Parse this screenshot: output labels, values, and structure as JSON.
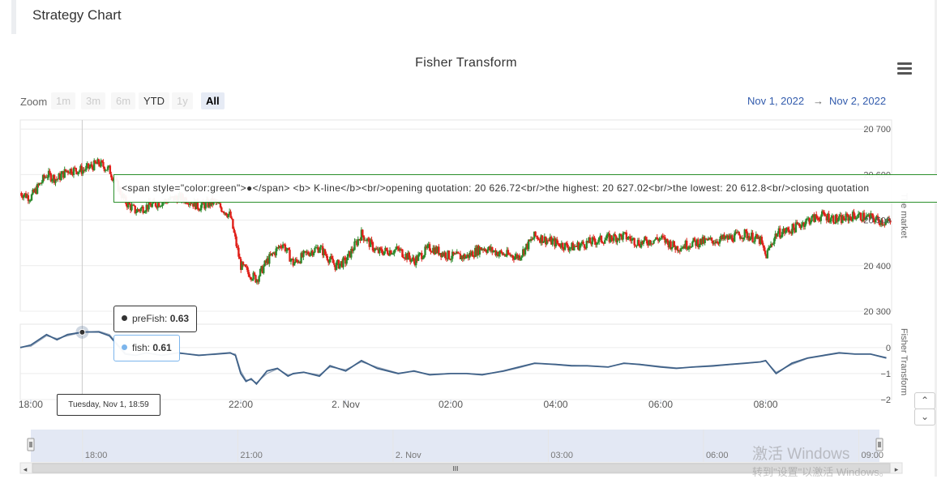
{
  "panel": {
    "title": "Strategy Chart"
  },
  "chart_data": {
    "type": "line",
    "title": "Fisher Transform",
    "zoom": {
      "label": "Zoom",
      "buttons": [
        {
          "label": "1m",
          "state": "disabled"
        },
        {
          "label": "3m",
          "state": "disabled"
        },
        {
          "label": "6m",
          "state": "disabled"
        },
        {
          "label": "YTD",
          "state": "enabled"
        },
        {
          "label": "1y",
          "state": "disabled"
        },
        {
          "label": "All",
          "state": "selected"
        }
      ]
    },
    "range": {
      "from": "Nov 1, 2022",
      "arrow": "→",
      "to": "Nov 2, 2022"
    },
    "upper_axis": {
      "label": "The market",
      "ticks": [
        "20 700",
        "20 600",
        "20 500",
        "20 400",
        "20 300"
      ],
      "tick_values": [
        20700,
        20600,
        20500,
        20400,
        20300
      ],
      "ylim": [
        20300,
        20720
      ]
    },
    "lower_axis": {
      "label": "Fisher Transform",
      "ticks": [
        "0",
        "−1",
        "−2"
      ],
      "tick_values": [
        0,
        -1,
        -2
      ],
      "ylim": [
        -2,
        0.9
      ]
    },
    "x_axis": {
      "xlim": [
        17.8,
        34.4
      ],
      "ticks": [
        {
          "label": "18:00",
          "hour": 18
        },
        {
          "label": "22:00",
          "hour": 22
        },
        {
          "label": "2. Nov",
          "hour": 24
        },
        {
          "label": "02:00",
          "hour": 26
        },
        {
          "label": "04:00",
          "hour": 28
        },
        {
          "label": "06:00",
          "hour": 30
        },
        {
          "label": "08:00",
          "hour": 32
        }
      ]
    },
    "navigator": {
      "xlim": [
        17.0,
        33.4
      ],
      "ticks": [
        {
          "label": "18:00",
          "hour": 18
        },
        {
          "label": "21:00",
          "hour": 21
        },
        {
          "label": "2. Nov",
          "hour": 24
        },
        {
          "label": "03:00",
          "hour": 27
        },
        {
          "label": "06:00",
          "hour": 30
        },
        {
          "label": "09:00",
          "hour": 33
        }
      ]
    },
    "kline_trend": {
      "name": "K-line",
      "hours": [
        17.8,
        18.0,
        18.3,
        18.5,
        18.7,
        19.0,
        19.3,
        19.5,
        19.8,
        20.0,
        20.2,
        20.5,
        20.8,
        21.0,
        21.2,
        21.5,
        21.8,
        22.0,
        22.3,
        22.5,
        22.8,
        23.0,
        23.3,
        23.5,
        23.8,
        24.0,
        24.3,
        24.6,
        25.0,
        25.3,
        25.6,
        26.0,
        26.3,
        26.6,
        27.0,
        27.3,
        27.6,
        28.0,
        28.3,
        28.6,
        29.0,
        29.3,
        29.6,
        30.0,
        30.3,
        30.6,
        31.0,
        31.3,
        31.6,
        31.9,
        32.0,
        32.2,
        32.5,
        32.8,
        33.1,
        33.4,
        33.7,
        34.0,
        34.3
      ],
      "values": [
        20560,
        20550,
        20600,
        20590,
        20610,
        20610,
        20625,
        20610,
        20540,
        20520,
        20530,
        20540,
        20550,
        20545,
        20530,
        20540,
        20510,
        20400,
        20370,
        20410,
        20450,
        20405,
        20430,
        20440,
        20400,
        20410,
        20470,
        20430,
        20435,
        20410,
        20440,
        20420,
        20420,
        20440,
        20425,
        20420,
        20465,
        20450,
        20440,
        20450,
        20460,
        20465,
        20450,
        20460,
        20440,
        20450,
        20455,
        20460,
        20470,
        20455,
        20420,
        20470,
        20480,
        20500,
        20510,
        20500,
        20510,
        20505,
        20495
      ]
    },
    "series": [
      {
        "name": "fish",
        "hours": [
          17.8,
          18.0,
          18.3,
          18.5,
          18.7,
          19.0,
          19.3,
          19.5,
          19.8,
          20.0,
          20.2,
          20.5,
          20.8,
          21.0,
          21.2,
          21.5,
          21.8,
          21.9,
          22.0,
          22.1,
          22.2,
          22.3,
          22.5,
          22.7,
          22.9,
          23.0,
          23.2,
          23.5,
          23.7,
          24.0,
          24.3,
          24.6,
          25.0,
          25.3,
          25.6,
          26.0,
          26.3,
          26.6,
          27.0,
          27.3,
          27.6,
          28.0,
          28.3,
          28.6,
          29.0,
          29.3,
          29.6,
          30.0,
          30.3,
          30.6,
          31.0,
          31.3,
          31.6,
          31.9,
          32.0,
          32.2,
          32.5,
          32.8,
          33.1,
          33.4,
          33.7,
          34.0,
          34.3
        ],
        "values": [
          0.0,
          0.1,
          0.5,
          0.3,
          0.5,
          0.6,
          0.6,
          0.45,
          -0.25,
          -0.3,
          -0.2,
          -0.3,
          -0.2,
          -0.25,
          -0.3,
          -0.25,
          -0.2,
          -0.3,
          -1.0,
          -1.3,
          -1.2,
          -1.4,
          -0.9,
          -0.8,
          -1.1,
          -1.0,
          -0.95,
          -1.1,
          -0.7,
          -0.9,
          -0.5,
          -0.8,
          -1.0,
          -0.9,
          -1.05,
          -1.0,
          -1.0,
          -1.05,
          -0.9,
          -0.75,
          -0.6,
          -0.65,
          -0.7,
          -0.7,
          -0.75,
          -0.6,
          -0.65,
          -0.75,
          -0.8,
          -0.75,
          -0.7,
          -0.65,
          -0.6,
          -0.55,
          -0.5,
          -1.0,
          -0.6,
          -0.4,
          -0.3,
          -0.2,
          -0.25,
          -0.25,
          -0.4
        ]
      },
      {
        "name": "preFish",
        "hours": [
          17.8,
          18.0,
          18.3,
          18.5,
          18.7,
          19.0,
          19.3,
          19.5,
          19.8,
          20.0,
          20.2,
          20.5,
          20.8,
          21.0,
          21.2,
          21.5,
          21.8,
          21.9,
          22.0,
          22.1,
          22.2,
          22.3,
          22.5,
          22.7,
          22.9,
          23.0,
          23.2,
          23.5,
          23.7,
          24.0,
          24.3,
          24.6,
          25.0,
          25.3,
          25.6,
          26.0,
          26.3,
          26.6,
          27.0,
          27.3,
          27.6,
          28.0,
          28.3,
          28.6,
          29.0,
          29.3,
          29.6,
          30.0,
          30.3,
          30.6,
          31.0,
          31.3,
          31.6,
          31.9,
          32.0,
          32.2,
          32.5,
          32.8,
          33.1,
          33.4,
          33.7,
          34.0,
          34.3
        ],
        "values": [
          0.02,
          0.05,
          0.45,
          0.35,
          0.45,
          0.6,
          0.63,
          0.5,
          -0.2,
          -0.3,
          -0.22,
          -0.28,
          -0.22,
          -0.24,
          -0.28,
          -0.27,
          -0.22,
          -0.25,
          -0.9,
          -1.25,
          -1.25,
          -1.35,
          -1.0,
          -0.82,
          -1.05,
          -1.02,
          -0.95,
          -1.05,
          -0.75,
          -0.85,
          -0.55,
          -0.75,
          -0.98,
          -0.92,
          -1.02,
          -1.0,
          -1.0,
          -1.02,
          -0.92,
          -0.78,
          -0.62,
          -0.64,
          -0.68,
          -0.7,
          -0.74,
          -0.62,
          -0.64,
          -0.72,
          -0.78,
          -0.76,
          -0.72,
          -0.66,
          -0.62,
          -0.56,
          -0.52,
          -0.95,
          -0.65,
          -0.42,
          -0.32,
          -0.22,
          -0.24,
          -0.25,
          -0.38
        ]
      }
    ],
    "crosshair_hour": 18.98
  },
  "kline_tooltip": {
    "text": "<span style=\"color:green\">●</span> <b> K-line</b><br/>opening quotation: 20 626.72<br/>the highest: 20 627.02<br/>the lowest: 20 612.8<br/>closing quotation"
  },
  "tooltips": {
    "prefish_label": "preFish:",
    "prefish_value": "0.63",
    "fish_label": "fish:",
    "fish_value": "0.61",
    "time": "Tuesday, Nov 1, 18:59"
  },
  "scroll": {
    "up": "⌃",
    "down": "⌄",
    "bar_grip": "III",
    "left_arrow": "◂",
    "right_arrow": "▸"
  },
  "watermark": {
    "line1": "激活 Windows",
    "line2": "转到\"设置\"以激活 Windows。"
  },
  "colors": {
    "up": "#2d8a2d",
    "down": "#e0201a",
    "fish": "#3f6188",
    "prefish": "#333333",
    "navigator": "#ccd6eb"
  }
}
